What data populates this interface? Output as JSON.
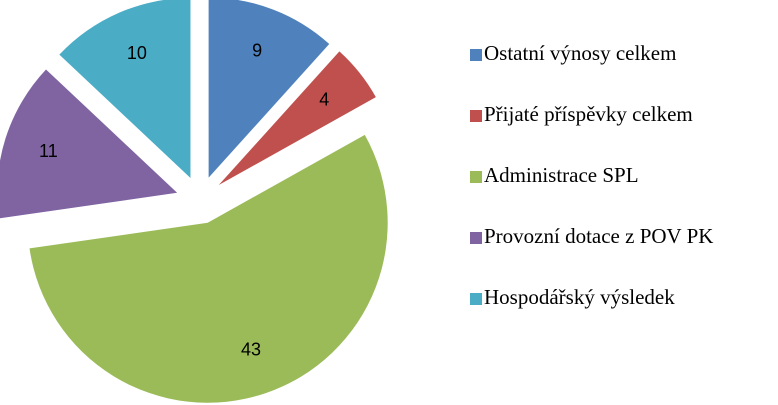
{
  "chart_data": {
    "type": "pie",
    "categories": [
      "Ostatní výnosy celkem",
      "Přijaté příspěvky celkem",
      "Administrace SPL",
      "Provozní dotace z POV PK",
      "Hospodářský výsledek"
    ],
    "values": [
      9,
      4,
      43,
      11,
      10
    ],
    "colors": [
      "#4f81bd",
      "#c0504d",
      "#9bbb59",
      "#8064a2",
      "#4bacc6"
    ],
    "exploded": true,
    "legend": "right"
  }
}
